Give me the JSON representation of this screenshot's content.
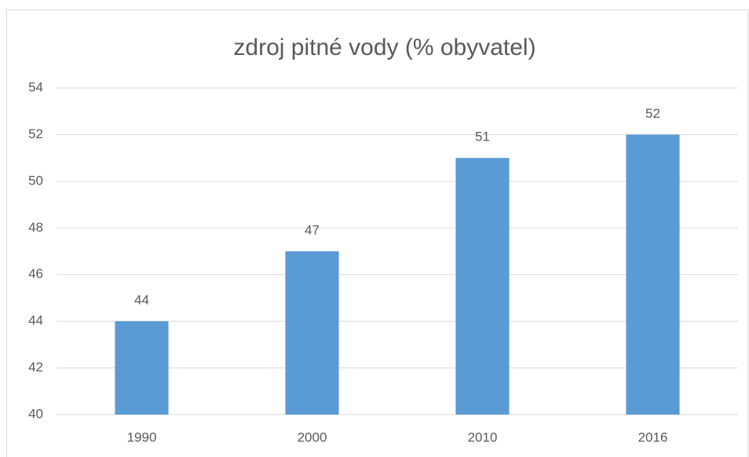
{
  "chart_data": {
    "type": "bar",
    "title": "zdroj pitné vody (% obyvatel)",
    "categories": [
      "1990",
      "2000",
      "2010",
      "2016"
    ],
    "values": [
      44,
      47,
      51,
      52
    ],
    "color": "#5b9bd5",
    "ylim": [
      40,
      54
    ],
    "yticks": [
      40,
      42,
      44,
      46,
      48,
      50,
      52,
      54
    ],
    "grid": true
  }
}
